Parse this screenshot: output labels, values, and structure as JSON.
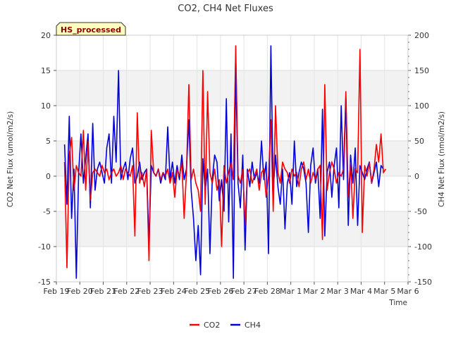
{
  "chart_data": {
    "type": "line",
    "title": "CO2, CH4 Net Fluxes",
    "xlabel": "Time",
    "ylabel_left": "CO2 Net Flux (umol/m2/s)",
    "ylabel_right": "CH4 Net Flux (nmol/m2/s)",
    "annotation": "HS_processed",
    "x_tick_labels": [
      "Feb 19",
      "Feb 20",
      "Feb 21",
      "Feb 22",
      "Feb 23",
      "Feb 24",
      "Feb 25",
      "Feb 26",
      "Feb 27",
      "Feb 28",
      "Mar 1",
      "Mar 2",
      "Mar 3",
      "Mar 4",
      "Mar 5",
      "Mar 6"
    ],
    "xlim_days": [
      0,
      15
    ],
    "ylim_left": [
      -15,
      20
    ],
    "ylim_right": [
      -150,
      200
    ],
    "y_ticks_left": [
      -15,
      -10,
      -5,
      0,
      5,
      10,
      15,
      20
    ],
    "y_ticks_right": [
      -150,
      -100,
      -50,
      0,
      50,
      100,
      150,
      200
    ],
    "grid": true,
    "legend_position": "bottom-center",
    "colors": {
      "CO2": "#ff0000",
      "CH4": "#0000dd",
      "band": "#f2f2f2",
      "annotation_bg": "#ffffc0",
      "annotation_text": "#8b0000"
    },
    "series": [
      {
        "name": "CO2",
        "axis": "left",
        "x_start_day": 0.35,
        "x_step_day": 0.1,
        "values": [
          2,
          -13,
          3,
          5.5,
          -2,
          1.5,
          0.5,
          0,
          6.5,
          -2,
          5,
          -3.5,
          0.5,
          1,
          0.5,
          0,
          1.5,
          0.5,
          1,
          -0.5,
          0.5,
          1,
          0,
          0.5,
          1.5,
          -0.5,
          1,
          0.5,
          0,
          1.5,
          -8.5,
          9,
          -1,
          0.5,
          -1.5,
          1,
          -12,
          6.5,
          0.5,
          0,
          1,
          -0.5,
          0.5,
          0,
          1,
          -1,
          0.5,
          -3,
          1,
          0,
          2,
          -6,
          0.5,
          13,
          -0.5,
          1,
          -1,
          -2,
          -5,
          15,
          -4,
          12,
          0.5,
          -1,
          1,
          -2,
          -0.5,
          -10,
          1.5,
          -1,
          0.5,
          2,
          -0.5,
          18.5,
          0,
          -1,
          1,
          -7,
          0.5,
          1,
          -1,
          0,
          1,
          -2,
          0.5,
          1,
          -3,
          0,
          8,
          -5,
          10,
          0.5,
          -1,
          2,
          1,
          0.5,
          -1,
          1,
          0,
          0.5,
          -1.5,
          1,
          2,
          -0.5,
          1,
          -1,
          0.5,
          -0.5,
          1,
          1.5,
          -9,
          13,
          -2,
          0.5,
          2,
          1,
          -1,
          0.5,
          0,
          1,
          12,
          -3,
          2,
          -6,
          1,
          0.5,
          18,
          -8,
          1.5,
          0,
          2,
          -1,
          1,
          4.5,
          2,
          6,
          0.5,
          1
        ]
      },
      {
        "name": "CH4",
        "axis": "right",
        "x_start_day": 0.35,
        "x_step_day": 0.1,
        "values": [
          45,
          -40,
          85,
          -60,
          10,
          -145,
          5,
          60,
          -10,
          25,
          60,
          -45,
          75,
          -20,
          10,
          20,
          5,
          -10,
          40,
          60,
          -10,
          85,
          20,
          150,
          -5,
          10,
          20,
          -5,
          25,
          40,
          -10,
          0,
          20,
          -5,
          5,
          10,
          -95,
          15,
          5,
          0,
          10,
          -10,
          5,
          -5,
          70,
          -5,
          20,
          -10,
          15,
          -5,
          30,
          -5,
          10,
          80,
          -20,
          -60,
          -120,
          -70,
          -140,
          25,
          -20,
          10,
          -110,
          -5,
          30,
          20,
          -35,
          -5,
          -50,
          110,
          -65,
          60,
          -145,
          155,
          -10,
          -45,
          30,
          -105,
          10,
          -15,
          20,
          -5,
          5,
          -10,
          50,
          -5,
          20,
          -110,
          185,
          -20,
          30,
          -15,
          -40,
          10,
          -75,
          -10,
          5,
          -40,
          50,
          -15,
          5,
          20,
          10,
          -10,
          -80,
          15,
          40,
          -10,
          10,
          -60,
          95,
          -85,
          5,
          20,
          -30,
          15,
          40,
          -45,
          100,
          -5,
          110,
          -70,
          30,
          -10,
          40,
          -70,
          15,
          5,
          -5,
          10,
          20,
          -10,
          5,
          20,
          -15,
          15,
          10
        ]
      }
    ]
  }
}
